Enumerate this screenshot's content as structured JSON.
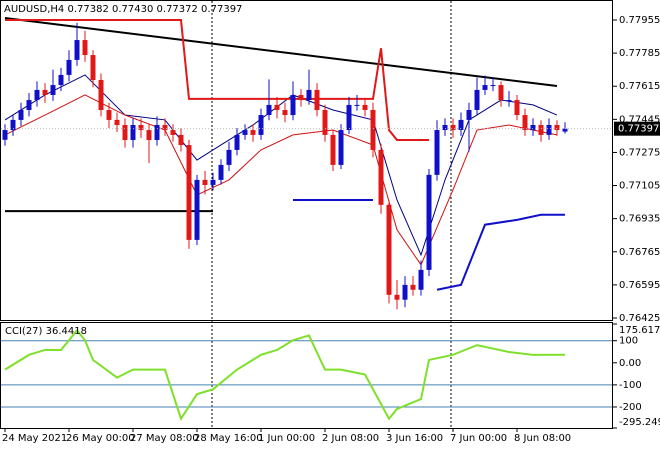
{
  "chart_data": [
    {
      "type": "candlestick",
      "title": "AUDUSD,H4 0.77382 0.77430 0.77372 0.77397",
      "open": [
        0.7734,
        0.7739,
        0.77442,
        0.77493,
        0.77544,
        0.77596,
        0.7757,
        0.77621,
        0.77673,
        0.7775,
        0.77852,
        0.77775,
        0.77647,
        0.77493,
        0.77442,
        0.77416,
        0.77339,
        0.77416,
        0.7739,
        0.77339,
        0.77416,
        0.7739,
        0.77365,
        0.77313,
        0.76826,
        0.77134,
        0.77108,
        0.77134,
        0.77211,
        0.77288,
        0.77365,
        0.7739,
        0.77365,
        0.77467,
        0.77519,
        0.77493,
        0.77467,
        0.7757,
        0.77544,
        0.77596,
        0.77493,
        0.77365,
        0.77211,
        0.7739,
        0.77519,
        0.77519,
        0.77493,
        0.77288,
        0.77006,
        0.76544,
        0.76519,
        0.76595,
        0.7657,
        0.76672,
        0.7716,
        0.7739,
        0.77416,
        0.7739,
        0.77442,
        0.77493,
        0.77596,
        0.77621,
        0.77621,
        0.77544,
        0.77544,
        0.77467,
        0.7739,
        0.77416,
        0.77365,
        0.77416,
        0.77382
      ],
      "high": [
        0.7742,
        0.7747,
        0.7753,
        0.7758,
        0.7764,
        0.7763,
        0.777,
        0.7771,
        0.778,
        0.7794,
        0.779,
        0.778,
        0.7768,
        0.7753,
        0.7748,
        0.7745,
        0.7745,
        0.7745,
        0.7742,
        0.7746,
        0.7745,
        0.7742,
        0.774,
        0.7734,
        0.7716,
        0.7718,
        0.7717,
        0.7724,
        0.7733,
        0.774,
        0.7742,
        0.7742,
        0.775,
        0.7765,
        0.7756,
        0.7753,
        0.7764,
        0.776,
        0.777,
        0.7763,
        0.7752,
        0.7739,
        0.7742,
        0.7756,
        0.7757,
        0.7755,
        0.7753,
        0.7732,
        0.7703,
        0.7662,
        0.7664,
        0.7664,
        0.7672,
        0.7719,
        0.7744,
        0.7745,
        0.7745,
        0.7748,
        0.7753,
        0.7766,
        0.7767,
        0.7766,
        0.7764,
        0.7759,
        0.7757,
        0.775,
        0.7745,
        0.7744,
        0.7745,
        0.7744,
        0.7743
      ],
      "low": [
        0.7731,
        0.7736,
        0.7741,
        0.7746,
        0.7751,
        0.7753,
        0.7754,
        0.7759,
        0.7764,
        0.7772,
        0.7774,
        0.7761,
        0.7746,
        0.774,
        0.7738,
        0.773,
        0.773,
        0.7735,
        0.7722,
        0.7731,
        0.7736,
        0.7733,
        0.7728,
        0.7678,
        0.768,
        0.7706,
        0.7708,
        0.7711,
        0.7718,
        0.7726,
        0.7734,
        0.7733,
        0.7734,
        0.7744,
        0.7745,
        0.7743,
        0.7744,
        0.7751,
        0.7752,
        0.7746,
        0.7733,
        0.7718,
        0.7719,
        0.7737,
        0.7749,
        0.7746,
        0.7725,
        0.7696,
        0.765,
        0.7647,
        0.7648,
        0.7654,
        0.7654,
        0.7664,
        0.7713,
        0.7736,
        0.7735,
        0.7736,
        0.7728,
        0.7747,
        0.7757,
        0.7759,
        0.7751,
        0.7751,
        0.7744,
        0.7736,
        0.7736,
        0.7733,
        0.7734,
        0.7736,
        0.77372
      ],
      "close": [
        0.7739,
        0.77442,
        0.77493,
        0.77544,
        0.77596,
        0.7757,
        0.77621,
        0.77673,
        0.7775,
        0.77852,
        0.77775,
        0.77647,
        0.77493,
        0.77442,
        0.77416,
        0.77339,
        0.77416,
        0.7739,
        0.77339,
        0.77416,
        0.7739,
        0.77365,
        0.77313,
        0.76826,
        0.77134,
        0.77108,
        0.77134,
        0.77211,
        0.77288,
        0.77365,
        0.7739,
        0.77365,
        0.77467,
        0.77519,
        0.77493,
        0.77467,
        0.7757,
        0.77544,
        0.77596,
        0.77493,
        0.77365,
        0.77211,
        0.7739,
        0.77519,
        0.77519,
        0.77493,
        0.77288,
        0.77006,
        0.76544,
        0.76519,
        0.76595,
        0.7657,
        0.76672,
        0.7716,
        0.7739,
        0.77416,
        0.7739,
        0.77442,
        0.77493,
        0.77596,
        0.77621,
        0.77621,
        0.77544,
        0.77544,
        0.77467,
        0.7739,
        0.77416,
        0.77365,
        0.77416,
        0.7739,
        0.77397
      ],
      "up_color": "#1010c8",
      "down_color": "#e01818",
      "ylim": [
        0.76425,
        0.77955
      ],
      "yticks": [
        0.77955,
        0.77785,
        0.77615,
        0.77445,
        0.77275,
        0.77105,
        0.76935,
        0.76765,
        0.76595,
        0.76425
      ],
      "xticks": [
        {
          "value": 0,
          "label": "24 May 2021"
        },
        {
          "value": 8,
          "label": "26 May 00:00"
        },
        {
          "value": 16,
          "label": "27 May 08:00"
        },
        {
          "value": 24,
          "label": "28 May 16:00"
        },
        {
          "value": 32,
          "label": "1 Jun 00:00"
        },
        {
          "value": 40,
          "label": "2 Jun 08:00"
        },
        {
          "value": 48,
          "label": "3 Jun 16:00"
        },
        {
          "value": 56,
          "label": "7 Jun 00:00"
        },
        {
          "value": 64,
          "label": "8 Jun 08:00"
        }
      ],
      "overlays": [
        {
          "color": "#000080",
          "width": 1,
          "index": [
            0,
            5,
            10,
            15,
            20,
            24,
            26,
            31,
            36,
            41,
            46,
            49,
            52,
            55,
            58,
            62,
            66,
            69
          ],
          "values": [
            0.77442,
            0.7757,
            0.77673,
            0.77467,
            0.77442,
            0.77236,
            0.77288,
            0.77416,
            0.7757,
            0.77493,
            0.77442,
            0.77031,
            0.76749,
            0.77134,
            0.77442,
            0.77544,
            0.77519,
            0.77467
          ]
        },
        {
          "color": "#d01010",
          "width": 1,
          "index": [
            0,
            5,
            10,
            15,
            20,
            24,
            28,
            32,
            36,
            41,
            46,
            49,
            52,
            56,
            59,
            63,
            66,
            69
          ],
          "values": [
            0.77365,
            0.77467,
            0.7757,
            0.77467,
            0.7739,
            0.77057,
            0.77134,
            0.77288,
            0.77365,
            0.7739,
            0.77313,
            0.76878,
            0.76698,
            0.77083,
            0.7739,
            0.77416,
            0.7739,
            0.77365
          ]
        },
        {
          "color": "#000000",
          "width": 2,
          "index": [
            0,
            69
          ],
          "values": [
            0.77965,
            0.77616
          ]
        },
        {
          "color": "#000000",
          "width": 2,
          "index": [
            0,
            26
          ],
          "values": [
            0.76974,
            0.76974
          ]
        },
        {
          "color": "#e01818",
          "width": 2,
          "index": [
            0,
            22,
            23,
            46,
            47,
            48,
            49,
            53
          ],
          "values": [
            0.77955,
            0.77955,
            0.7755,
            0.7755,
            0.7781,
            0.7739,
            0.77339,
            0.77339
          ]
        },
        {
          "color": "#1010c8",
          "width": 2,
          "index": [
            36,
            46
          ],
          "values": [
            0.77031,
            0.77031
          ]
        },
        {
          "color": "#1010c8",
          "width": 2,
          "index": [
            54,
            57,
            60,
            64,
            67,
            70
          ],
          "values": [
            0.7657,
            0.76595,
            0.76904,
            0.76929,
            0.76955,
            0.76955
          ]
        }
      ]
    },
    {
      "type": "line",
      "title": "CCI(27) 36.4418",
      "color": "#7ee02a",
      "x": [
        0,
        3,
        5,
        7,
        9,
        10,
        11,
        14,
        16,
        20,
        22,
        24,
        26,
        29,
        32,
        34,
        36,
        38,
        40,
        42,
        45,
        48,
        49,
        52,
        53,
        56,
        59,
        63,
        66,
        70
      ],
      "values": [
        -31,
        36,
        58,
        58,
        147,
        102,
        13,
        -67,
        -31,
        -31,
        -253,
        -142,
        -120,
        -31,
        36,
        58,
        102,
        124,
        -31,
        -31,
        -53,
        -253,
        -209,
        -164,
        13,
        36,
        80,
        49,
        36,
        36.4418
      ],
      "ylim": [
        -295.2492,
        175.6173
      ],
      "yticks": [
        175.6173,
        100,
        {
          "value": 0,
          "label": "0.00"
        },
        -100,
        -200,
        -295.2492
      ],
      "levels": [
        100,
        -100,
        -200
      ]
    }
  ]
}
